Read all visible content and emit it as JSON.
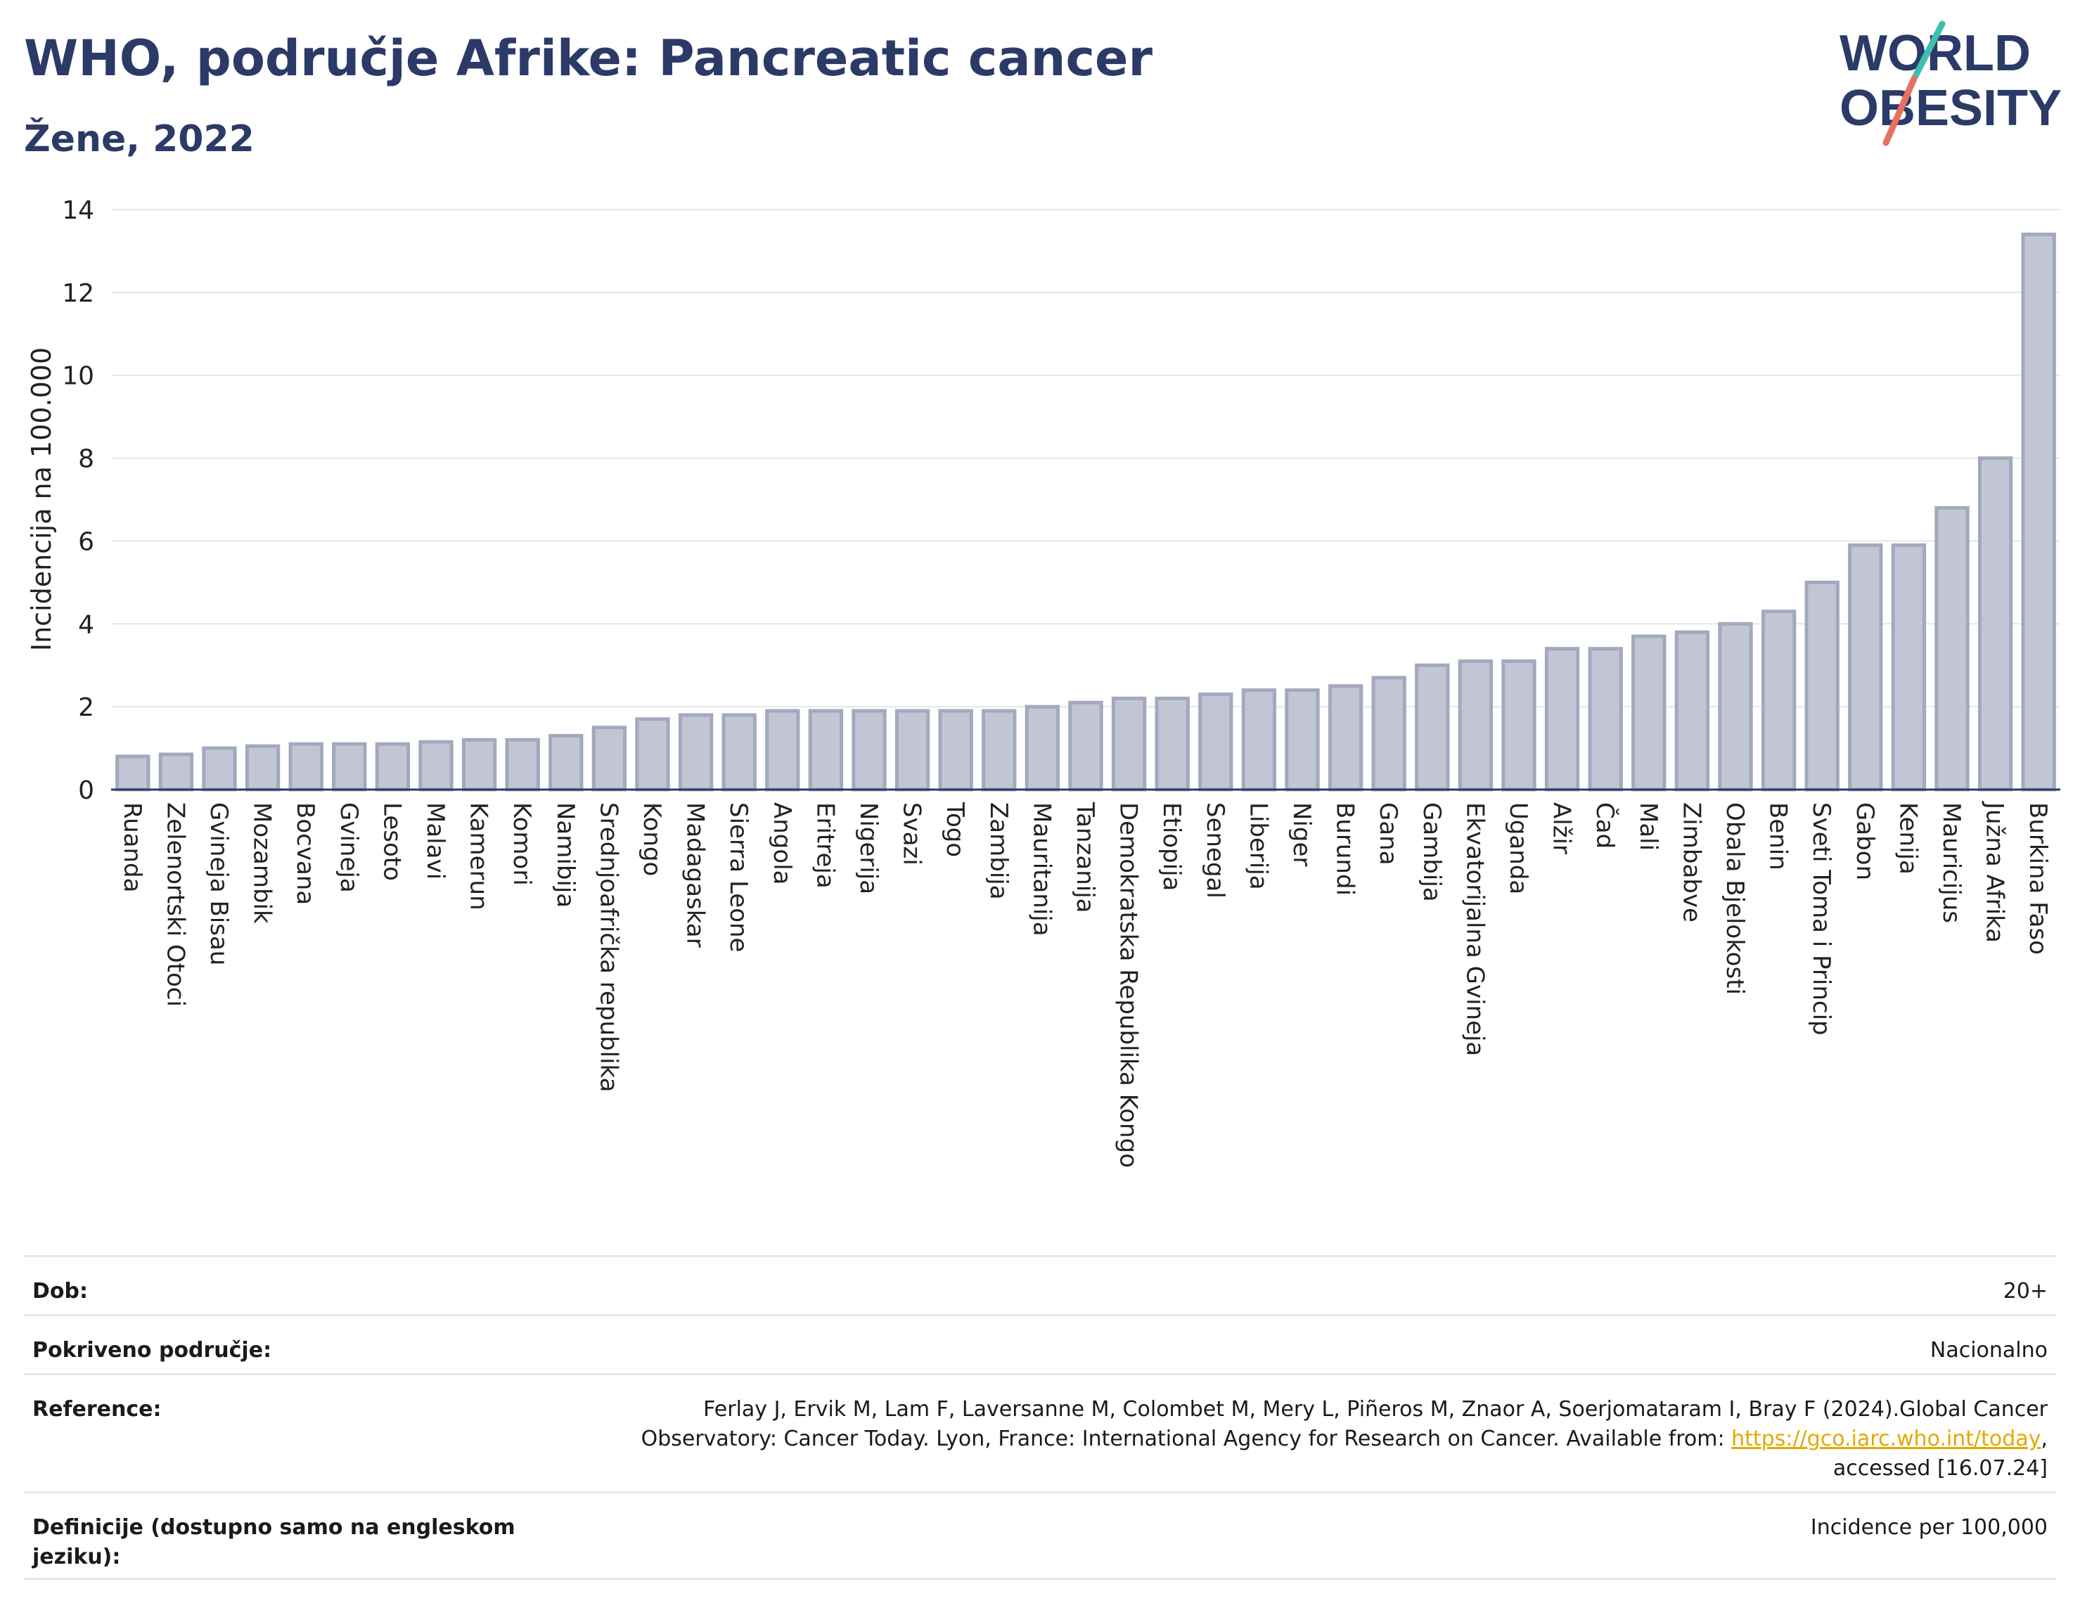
{
  "header": {
    "title": "WHO, područje Afrike: Pancreatic cancer",
    "subtitle": "Žene, 2022"
  },
  "logo": {
    "line1": "WORLD",
    "line2": "OBESITY"
  },
  "chart_data": {
    "type": "bar",
    "title": "WHO, područje Afrike: Pancreatic cancer",
    "subtitle": "Žene, 2022",
    "ylabel": "Incidencija na 100.000",
    "xlabel": "",
    "ylim": [
      0,
      14
    ],
    "yticks": [
      0,
      2,
      4,
      6,
      8,
      10,
      12,
      14
    ],
    "grid": true,
    "bar_color": "#c2c6d4",
    "bar_edge_color": "#a3a9bd",
    "categories": [
      "Ruanda",
      "Zelenortski Otoci",
      "Gvineja Bisau",
      "Mozambik",
      "Bocvana",
      "Gvineja",
      "Lesoto",
      "Malavi",
      "Kamerun",
      "Komori",
      "Namibija",
      "Srednjoafrička republika",
      "Kongo",
      "Madagaskar",
      "Sierra Leone",
      "Angola",
      "Eritreja",
      "Nigerija",
      "Svazi",
      "Togo",
      "Zambija",
      "Mauritanija",
      "Tanzanija",
      "Demokratska Republika Kongo",
      "Etiopija",
      "Senegal",
      "Liberija",
      "Niger",
      "Burundi",
      "Gana",
      "Gambija",
      "Ekvatorijalna Gvineja",
      "Uganda",
      "Alžir",
      "Čad",
      "Mali",
      "Zimbabve",
      "Obala Bjelokosti",
      "Benin",
      "Sveti Toma i Princip",
      "Gabon",
      "Kenija",
      "Mauricijus",
      "Južna Afrika",
      "Burkina Faso"
    ],
    "values": [
      0.8,
      0.85,
      1.0,
      1.05,
      1.1,
      1.1,
      1.1,
      1.15,
      1.2,
      1.2,
      1.3,
      1.5,
      1.7,
      1.8,
      1.8,
      1.9,
      1.9,
      1.9,
      1.9,
      1.9,
      1.9,
      2.0,
      2.1,
      2.2,
      2.2,
      2.3,
      2.4,
      2.4,
      2.5,
      2.7,
      3.0,
      3.1,
      3.1,
      3.4,
      3.4,
      3.7,
      3.8,
      4.0,
      4.3,
      5.0,
      5.9,
      5.9,
      6.8,
      8.0,
      13.4
    ]
  },
  "info": {
    "rows": [
      {
        "label": "Dob:",
        "value": "20+"
      },
      {
        "label": "Pokriveno područje:",
        "value": "Nacionalno"
      },
      {
        "label": "Reference:",
        "value_pre": "Ferlay J, Ervik M, Lam F, Laversanne M, Colombet M, Mery L, Piñeros M, Znaor A, Soerjomataram I, Bray F (2024).Global Cancer Observatory: Cancer Today. Lyon, France: International Agency for Research on Cancer. Available from: ",
        "link": "https://gco.iarc.who.int/today",
        "value_post": ", accessed [16.07.24]"
      },
      {
        "label": "Definicije (dostupno samo na engleskom jeziku):",
        "value": "Incidence per 100,000"
      }
    ]
  },
  "colors": {
    "title": "#2b3a67",
    "logo_slash_teal": "#3fbfb0",
    "logo_slash_coral": "#e8705f",
    "link": "#e5a800"
  }
}
